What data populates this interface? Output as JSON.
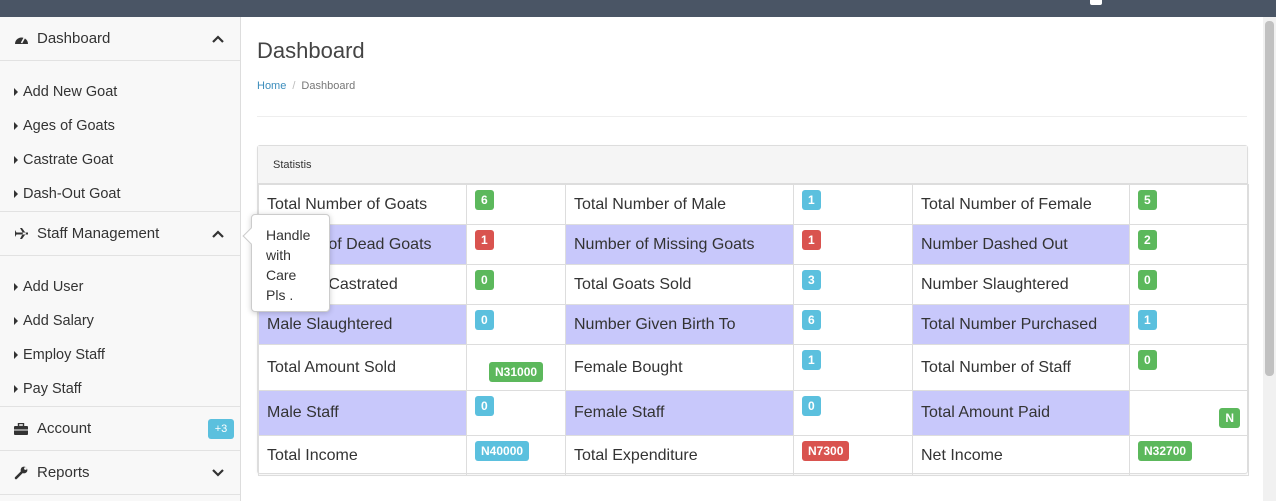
{
  "sidebar": {
    "dashboard": {
      "label": "Dashboard",
      "icon": "dashboard-icon"
    },
    "goat_items": [
      "Add New Goat",
      "Ages of Goats",
      "Castrate Goat",
      "Dash-Out Goat"
    ],
    "staff": {
      "label": "Staff Management",
      "icon": "plane-icon"
    },
    "staff_items": [
      "Add User",
      "Add Salary",
      "Employ Staff",
      "Pay Staff"
    ],
    "account": {
      "label": "Account",
      "icon": "briefcase-icon",
      "badge": "+3"
    },
    "reports": {
      "label": "Reports",
      "icon": "wrench-icon"
    }
  },
  "tooltip": {
    "lines": [
      "Handle",
      "with",
      "Care",
      "Pls ."
    ]
  },
  "main": {
    "title": "Dashboard",
    "breadcrumb": {
      "home": "Home",
      "current": "Dashboard"
    },
    "panel_title": "Statistis"
  },
  "colors": {
    "shade": "#c8c8fb",
    "green": "#5cb85c",
    "red": "#d9534f",
    "blue": "#5bc0de"
  },
  "stats": [
    [
      {
        "label": "Total Number of Goats",
        "value": "6",
        "color": "green"
      },
      {
        "label": "Total Number of Male",
        "value": "1",
        "color": "blue"
      },
      {
        "label": "Total Number of Female",
        "value": "5",
        "color": "green"
      }
    ],
    [
      {
        "label": "Number of Dead Goats",
        "value": "1",
        "color": "red"
      },
      {
        "label": "Number of Missing Goats",
        "value": "1",
        "color": "red"
      },
      {
        "label": "Number Dashed Out",
        "value": "2",
        "color": "green"
      }
    ],
    [
      {
        "label": "Number Castrated",
        "value": "0",
        "color": "green"
      },
      {
        "label": "Total Goats Sold",
        "value": "3",
        "color": "blue"
      },
      {
        "label": "Number Slaughtered",
        "value": "0",
        "color": "green"
      }
    ],
    [
      {
        "label": "Male Slaughtered",
        "value": "0",
        "color": "blue"
      },
      {
        "label": "Number Given Birth To",
        "value": "6",
        "color": "blue"
      },
      {
        "label": "Total Number Purchased",
        "value": "1",
        "color": "blue"
      }
    ],
    [
      {
        "label": "Total Amount Sold",
        "value": "N31000",
        "color": "green"
      },
      {
        "label": "Female Bought",
        "value": "1",
        "color": "blue"
      },
      {
        "label": "Total Number of Staff",
        "value": "0",
        "color": "green"
      }
    ],
    [
      {
        "label": "Male Staff",
        "value": "0",
        "color": "blue"
      },
      {
        "label": "Female Staff",
        "value": "0",
        "color": "blue"
      },
      {
        "label": "Total Amount Paid",
        "value": "N",
        "color": "green"
      }
    ],
    [
      {
        "label": "Total Income",
        "value": "N40000",
        "color": "blue"
      },
      {
        "label": "Total Expenditure",
        "value": "N7300",
        "color": "red"
      },
      {
        "label": "Net Income",
        "value": "N32700",
        "color": "green"
      }
    ]
  ]
}
